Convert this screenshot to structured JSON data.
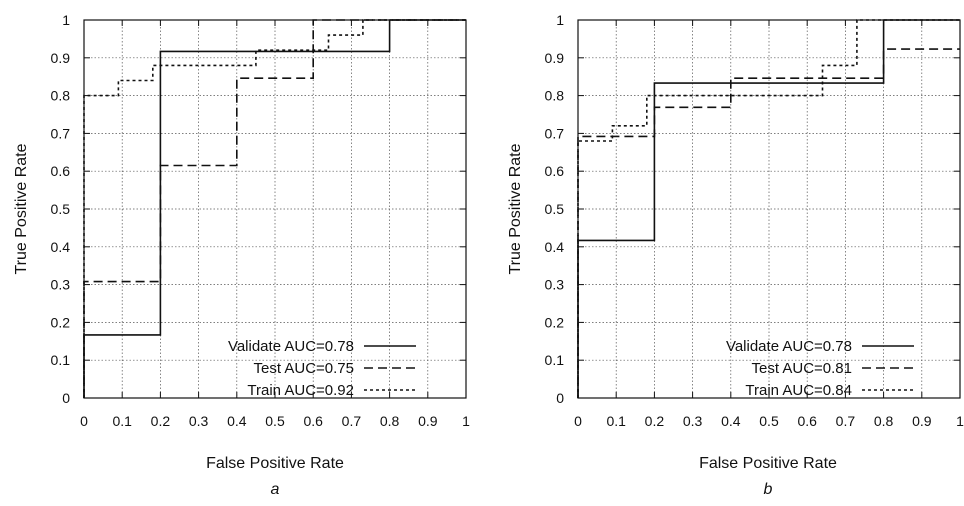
{
  "chart_data": [
    {
      "type": "line",
      "panel_label": "a",
      "xlabel": "False Positive Rate",
      "ylabel": "True Positive Rate",
      "xlim": [
        0,
        1
      ],
      "ylim": [
        0,
        1
      ],
      "xticks": [
        "0",
        "0.1",
        "0.2",
        "0.3",
        "0.4",
        "0.5",
        "0.6",
        "0.7",
        "0.8",
        "0.9",
        "1"
      ],
      "yticks": [
        "0",
        "0.1",
        "0.2",
        "0.3",
        "0.4",
        "0.5",
        "0.6",
        "0.7",
        "0.8",
        "0.9",
        "1"
      ],
      "grid": true,
      "legend_position": "bottom-right",
      "series": [
        {
          "name": "Validate AUC=0.78",
          "style": "solid",
          "x": [
            0,
            0,
            0.2,
            0.2,
            0.8,
            0.8,
            1
          ],
          "y": [
            0,
            0.167,
            0.167,
            0.917,
            0.917,
            1,
            1
          ]
        },
        {
          "name": "Test AUC=0.75",
          "style": "dashed",
          "x": [
            0,
            0,
            0.2,
            0.2,
            0.4,
            0.4,
            0.6,
            0.6,
            1
          ],
          "y": [
            0,
            0.308,
            0.308,
            0.615,
            0.615,
            0.846,
            0.846,
            1,
            1
          ]
        },
        {
          "name": "Train AUC=0.92",
          "style": "dotted",
          "x": [
            0,
            0,
            0.09,
            0.09,
            0.18,
            0.18,
            0.45,
            0.45,
            0.64,
            0.64,
            0.73,
            0.73,
            1
          ],
          "y": [
            0,
            0.8,
            0.8,
            0.84,
            0.84,
            0.88,
            0.88,
            0.92,
            0.92,
            0.96,
            0.96,
            1,
            1
          ]
        }
      ]
    },
    {
      "type": "line",
      "panel_label": "b",
      "xlabel": "False Positive Rate",
      "ylabel": "True Positive Rate",
      "xlim": [
        0,
        1
      ],
      "ylim": [
        0,
        1
      ],
      "xticks": [
        "0",
        "0.1",
        "0.2",
        "0.3",
        "0.4",
        "0.5",
        "0.6",
        "0.7",
        "0.8",
        "0.9",
        "1"
      ],
      "yticks": [
        "0",
        "0.1",
        "0.2",
        "0.3",
        "0.4",
        "0.5",
        "0.6",
        "0.7",
        "0.8",
        "0.9",
        "1"
      ],
      "grid": true,
      "legend_position": "bottom-right",
      "series": [
        {
          "name": "Validate AUC=0.78",
          "style": "solid",
          "x": [
            0,
            0,
            0.2,
            0.2,
            0.8,
            0.8,
            1
          ],
          "y": [
            0,
            0.417,
            0.417,
            0.833,
            0.833,
            1,
            1
          ]
        },
        {
          "name": "Test AUC=0.81",
          "style": "dashed",
          "x": [
            0,
            0,
            0.2,
            0.2,
            0.4,
            0.4,
            0.8,
            0.8,
            1
          ],
          "y": [
            0,
            0.692,
            0.692,
            0.769,
            0.769,
            0.846,
            0.846,
            0.923,
            0.923
          ]
        },
        {
          "name": "Train AUC=0.84",
          "style": "dotted",
          "x": [
            0,
            0,
            0.09,
            0.09,
            0.18,
            0.18,
            0.64,
            0.64,
            0.73,
            0.73,
            1
          ],
          "y": [
            0,
            0.68,
            0.68,
            0.72,
            0.72,
            0.8,
            0.8,
            0.88,
            0.88,
            1,
            1
          ]
        }
      ]
    }
  ]
}
